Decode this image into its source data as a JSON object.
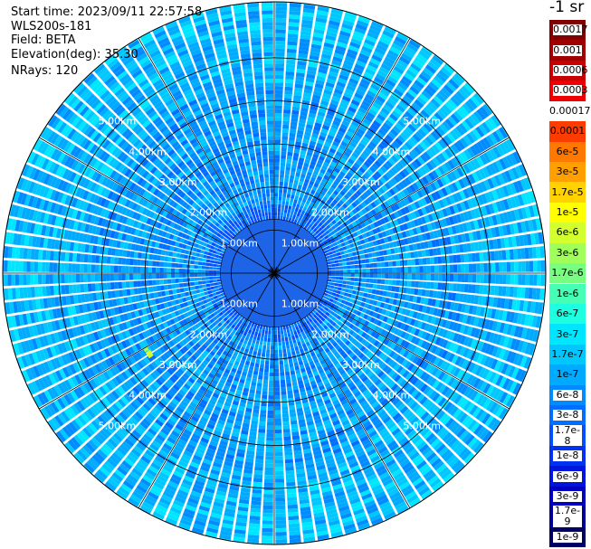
{
  "info": {
    "start_time": "Start time: 2023/09/11 22:57:58",
    "device": "WLS200s-181",
    "field": "Field: BETA",
    "elevation": "Elevation(deg): 35.30",
    "nrays": "NRays: 120"
  },
  "colorbar": {
    "unit_label": "-1 sr",
    "entries": [
      {
        "label": "0.0017",
        "color": "#800000"
      },
      {
        "label": "0.001",
        "color": "#a00000"
      },
      {
        "label": "0.0006",
        "color": "#c80000"
      },
      {
        "label": "0.0003",
        "color": "#f00000"
      },
      {
        "label": "0.00017",
        "color": "#ffffff"
      },
      {
        "label": "0.0001",
        "color": "#ff3c00"
      },
      {
        "label": "6e-5",
        "color": "#ff7800"
      },
      {
        "label": "3e-5",
        "color": "#ffa000"
      },
      {
        "label": "1.7e-5",
        "color": "#ffd200"
      },
      {
        "label": "1e-5",
        "color": "#ffff00"
      },
      {
        "label": "6e-6",
        "color": "#d2ff2d"
      },
      {
        "label": "3e-6",
        "color": "#a0ff5a"
      },
      {
        "label": "1.7e-6",
        "color": "#78ff82"
      },
      {
        "label": "1e-6",
        "color": "#46ffb4"
      },
      {
        "label": "6e-7",
        "color": "#1effe1"
      },
      {
        "label": "3e-7",
        "color": "#00e6ff"
      },
      {
        "label": "1.7e-7",
        "color": "#00c8ff"
      },
      {
        "label": "1e-7",
        "color": "#00aaff"
      },
      {
        "label": "6e-8",
        "color": "#008cff"
      },
      {
        "label": "3e-8",
        "color": "#006eff"
      },
      {
        "label": "1.7e-8",
        "color": "#0050ff"
      },
      {
        "label": "1e-8",
        "color": "#0032f0"
      },
      {
        "label": "6e-9",
        "color": "#0014dc"
      },
      {
        "label": "3e-9",
        "color": "#0000c0"
      },
      {
        "label": "1.7e-9",
        "color": "#000096"
      },
      {
        "label": "1e-9",
        "color": "#000064"
      }
    ]
  },
  "chart_data": {
    "type": "heatmap",
    "projection": "polar-ppi",
    "field": "BETA",
    "unit": "sr-1",
    "nrays": 120,
    "range_rings_km": [
      1,
      2,
      3,
      4,
      5
    ],
    "ring_labels": [
      "1.00km",
      "2.00km",
      "3.00km",
      "4.00km",
      "5.00km"
    ],
    "max_range_km": 6.3,
    "inner_dense_range_km": 1.25,
    "spoke_angles_deg": [
      0,
      30,
      60,
      90,
      120,
      150,
      180,
      210,
      240,
      270,
      300,
      330
    ],
    "highlight": {
      "azimuth_deg": 237,
      "range_km": 3.45,
      "value": "1e-5"
    },
    "value_distribution": {
      "typical_range": [
        "3e-8",
        "3e-7"
      ],
      "inner_zone_typical": "3e-8",
      "outer_annulus_typical": "6e-7"
    }
  }
}
